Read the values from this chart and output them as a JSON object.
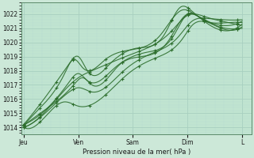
{
  "xlabel": "Pression niveau de la mer( hPa )",
  "bg_color": "#cce8d8",
  "plot_bg_color": "#c0e4d0",
  "grid_major_color": "#a8cfc0",
  "grid_minor_color": "#b8dcd0",
  "line_color": "#2d6e2d",
  "ylim": [
    1013.5,
    1022.8
  ],
  "yticks": [
    1014,
    1015,
    1016,
    1017,
    1018,
    1019,
    1020,
    1021,
    1022
  ],
  "xtick_labels": [
    "Jeu",
    "Ven",
    "Sam",
    "Dim",
    "L"
  ],
  "xtick_positions": [
    0,
    24,
    48,
    72,
    96
  ],
  "xlim": [
    -1,
    100
  ]
}
